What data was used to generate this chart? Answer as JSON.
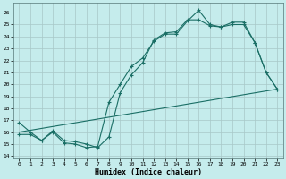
{
  "xlabel": "Humidex (Indice chaleur)",
  "bg_color": "#c5ecec",
  "line_color": "#1a6e65",
  "xlim": [
    -0.5,
    23.5
  ],
  "ylim": [
    13.8,
    26.8
  ],
  "yticks": [
    14,
    15,
    16,
    17,
    18,
    19,
    20,
    21,
    22,
    23,
    24,
    25,
    26
  ],
  "xticks": [
    0,
    1,
    2,
    3,
    4,
    5,
    6,
    7,
    8,
    9,
    10,
    11,
    12,
    13,
    14,
    15,
    16,
    17,
    18,
    19,
    20,
    21,
    22,
    23
  ],
  "line1_x": [
    0,
    1,
    2,
    3,
    4,
    5,
    6,
    7,
    8,
    9,
    10,
    11,
    12,
    13,
    14,
    15,
    16,
    17,
    18,
    19,
    20,
    21,
    22,
    23
  ],
  "line1_y": [
    16.8,
    16.0,
    15.3,
    16.0,
    15.1,
    15.0,
    14.7,
    14.8,
    18.5,
    20.0,
    21.5,
    22.2,
    23.6,
    24.2,
    24.2,
    25.3,
    26.2,
    25.0,
    24.8,
    25.2,
    25.2,
    23.5,
    21.0,
    19.6
  ],
  "line2_x": [
    0,
    1,
    2,
    3,
    4,
    5,
    6,
    7,
    8,
    9,
    10,
    11,
    12,
    13,
    14,
    15,
    16,
    17,
    18,
    19,
    20,
    21,
    22,
    23
  ],
  "line2_y": [
    15.8,
    15.8,
    15.3,
    16.1,
    15.3,
    15.2,
    15.0,
    14.7,
    15.6,
    19.3,
    20.8,
    21.8,
    23.7,
    24.3,
    24.4,
    25.4,
    25.4,
    24.9,
    24.8,
    25.0,
    25.0,
    23.5,
    21.0,
    19.6
  ],
  "line3_x": [
    0,
    23
  ],
  "line3_y": [
    16.0,
    19.6
  ]
}
